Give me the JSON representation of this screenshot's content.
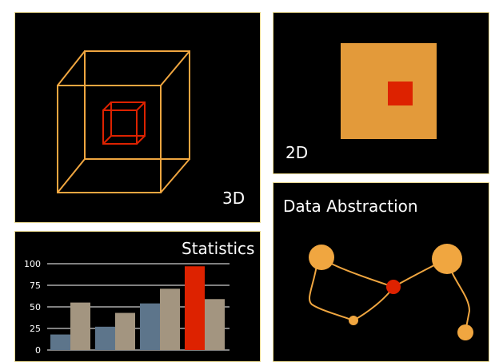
{
  "colors": {
    "background": "#000000",
    "panel_border": "#e8d890",
    "orange": "#f0a640",
    "red": "#dd2200",
    "outer_square": "#e39a3a",
    "bar_blue": "#5d758b",
    "bar_tan": "#a39580",
    "text": "#ffffff"
  },
  "panels": {
    "cube": {
      "label": "3D",
      "icon": "nested-cube-icon"
    },
    "square": {
      "label": "2D",
      "icon": "nested-square-icon"
    },
    "stats": {
      "label": "Statistics"
    },
    "graph": {
      "label": "Data Abstraction",
      "icon": "node-graph-icon"
    }
  },
  "chart_data": {
    "type": "bar",
    "title": "Statistics",
    "ylim": [
      0,
      100
    ],
    "yticks": [
      "0",
      "25",
      "50",
      "75",
      "100"
    ],
    "grid": true,
    "groups": [
      {
        "values": [
          18,
          55
        ],
        "colors": [
          "#5d758b",
          "#a39580"
        ]
      },
      {
        "values": [
          27,
          43
        ],
        "colors": [
          "#5d758b",
          "#a39580"
        ]
      },
      {
        "values": [
          54,
          71
        ],
        "colors": [
          "#5d758b",
          "#a39580"
        ]
      },
      {
        "values": [
          97,
          59
        ],
        "colors": [
          "#dd2200",
          "#a39580"
        ]
      }
    ]
  }
}
